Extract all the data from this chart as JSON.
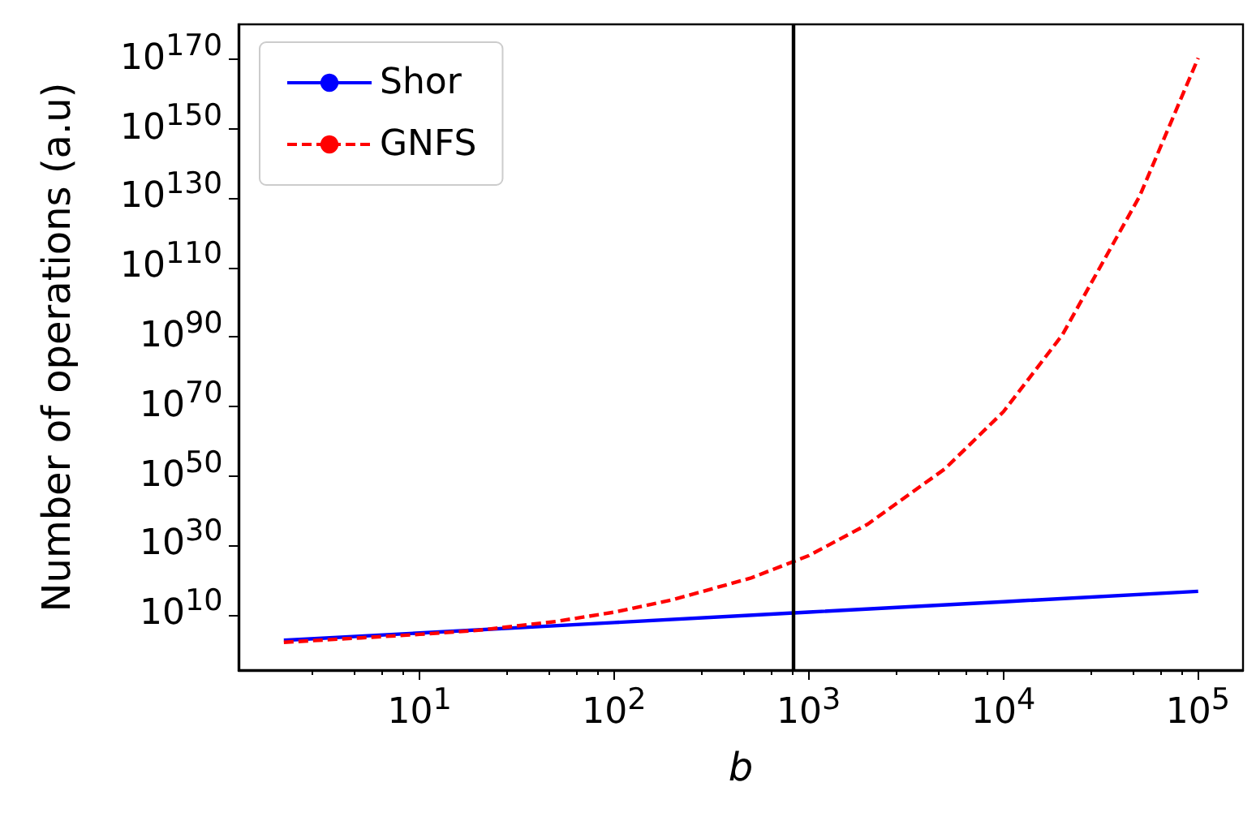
{
  "chart_data": {
    "type": "line",
    "xlabel": "b",
    "ylabel": "Number of operations (a.u)",
    "log": "xy",
    "grid": false,
    "legend": "top left",
    "marker": "none",
    "xlim": [
      1.17,
      170000
    ],
    "ylim": [
      1e-06,
      1e+180
    ],
    "xticks": [
      {
        "value": 10,
        "label": "10$^{1}$"
      },
      {
        "value": 100,
        "label": "10$^{2}$"
      },
      {
        "value": 1000,
        "label": "10$^{3}$"
      },
      {
        "value": 10000,
        "label": "10$^{4}$"
      },
      {
        "value": 100000,
        "label": "10$^{5}$"
      }
    ],
    "yticks": [
      {
        "value": 10000000000.0,
        "label": "10$^{10}$"
      },
      {
        "value": 1e+30,
        "label": "10$^{30}$"
      },
      {
        "value": 1e+50,
        "label": "10$^{50}$"
      },
      {
        "value": 1e+70,
        "label": "10$^{70}$"
      },
      {
        "value": 1e+90,
        "label": "10$^{90}$"
      },
      {
        "value": 1e+110,
        "label": "10$^{110}$"
      },
      {
        "value": 1e+130,
        "label": "10$^{130}$"
      },
      {
        "value": 1e+150,
        "label": "10$^{150}$"
      },
      {
        "value": 1e+170,
        "label": "10$^{170}$"
      }
    ],
    "series": [
      {
        "name": "Shor",
        "color": "#0000ff",
        "line_style": "solid",
        "x": [
          2,
          10,
          100,
          1000,
          10000,
          100000
        ],
        "values": [
          400.0,
          50000.0,
          50000000.0,
          50000000000.0,
          50000000000000.0,
          5e+16
        ]
      },
      {
        "name": "GNFS",
        "color": "#ff0000",
        "line_style": "dashed",
        "x": [
          2,
          5,
          10,
          20,
          50,
          100,
          200,
          500,
          1000,
          2000,
          5000,
          10000,
          20000,
          50000,
          100000
        ],
        "values": [
          100.0,
          2000.0,
          20000.0,
          300000.0,
          100000000.0,
          50000000000.0,
          200000000000000.0,
          3e+20,
          1e+27,
          1e+36,
          1e+52,
          3e+68,
          3e+90,
          3e+130,
          2e+170
        ]
      }
    ],
    "ref_lines": [
      {
        "axis": "x",
        "value": 830,
        "color": "#000000"
      }
    ]
  }
}
